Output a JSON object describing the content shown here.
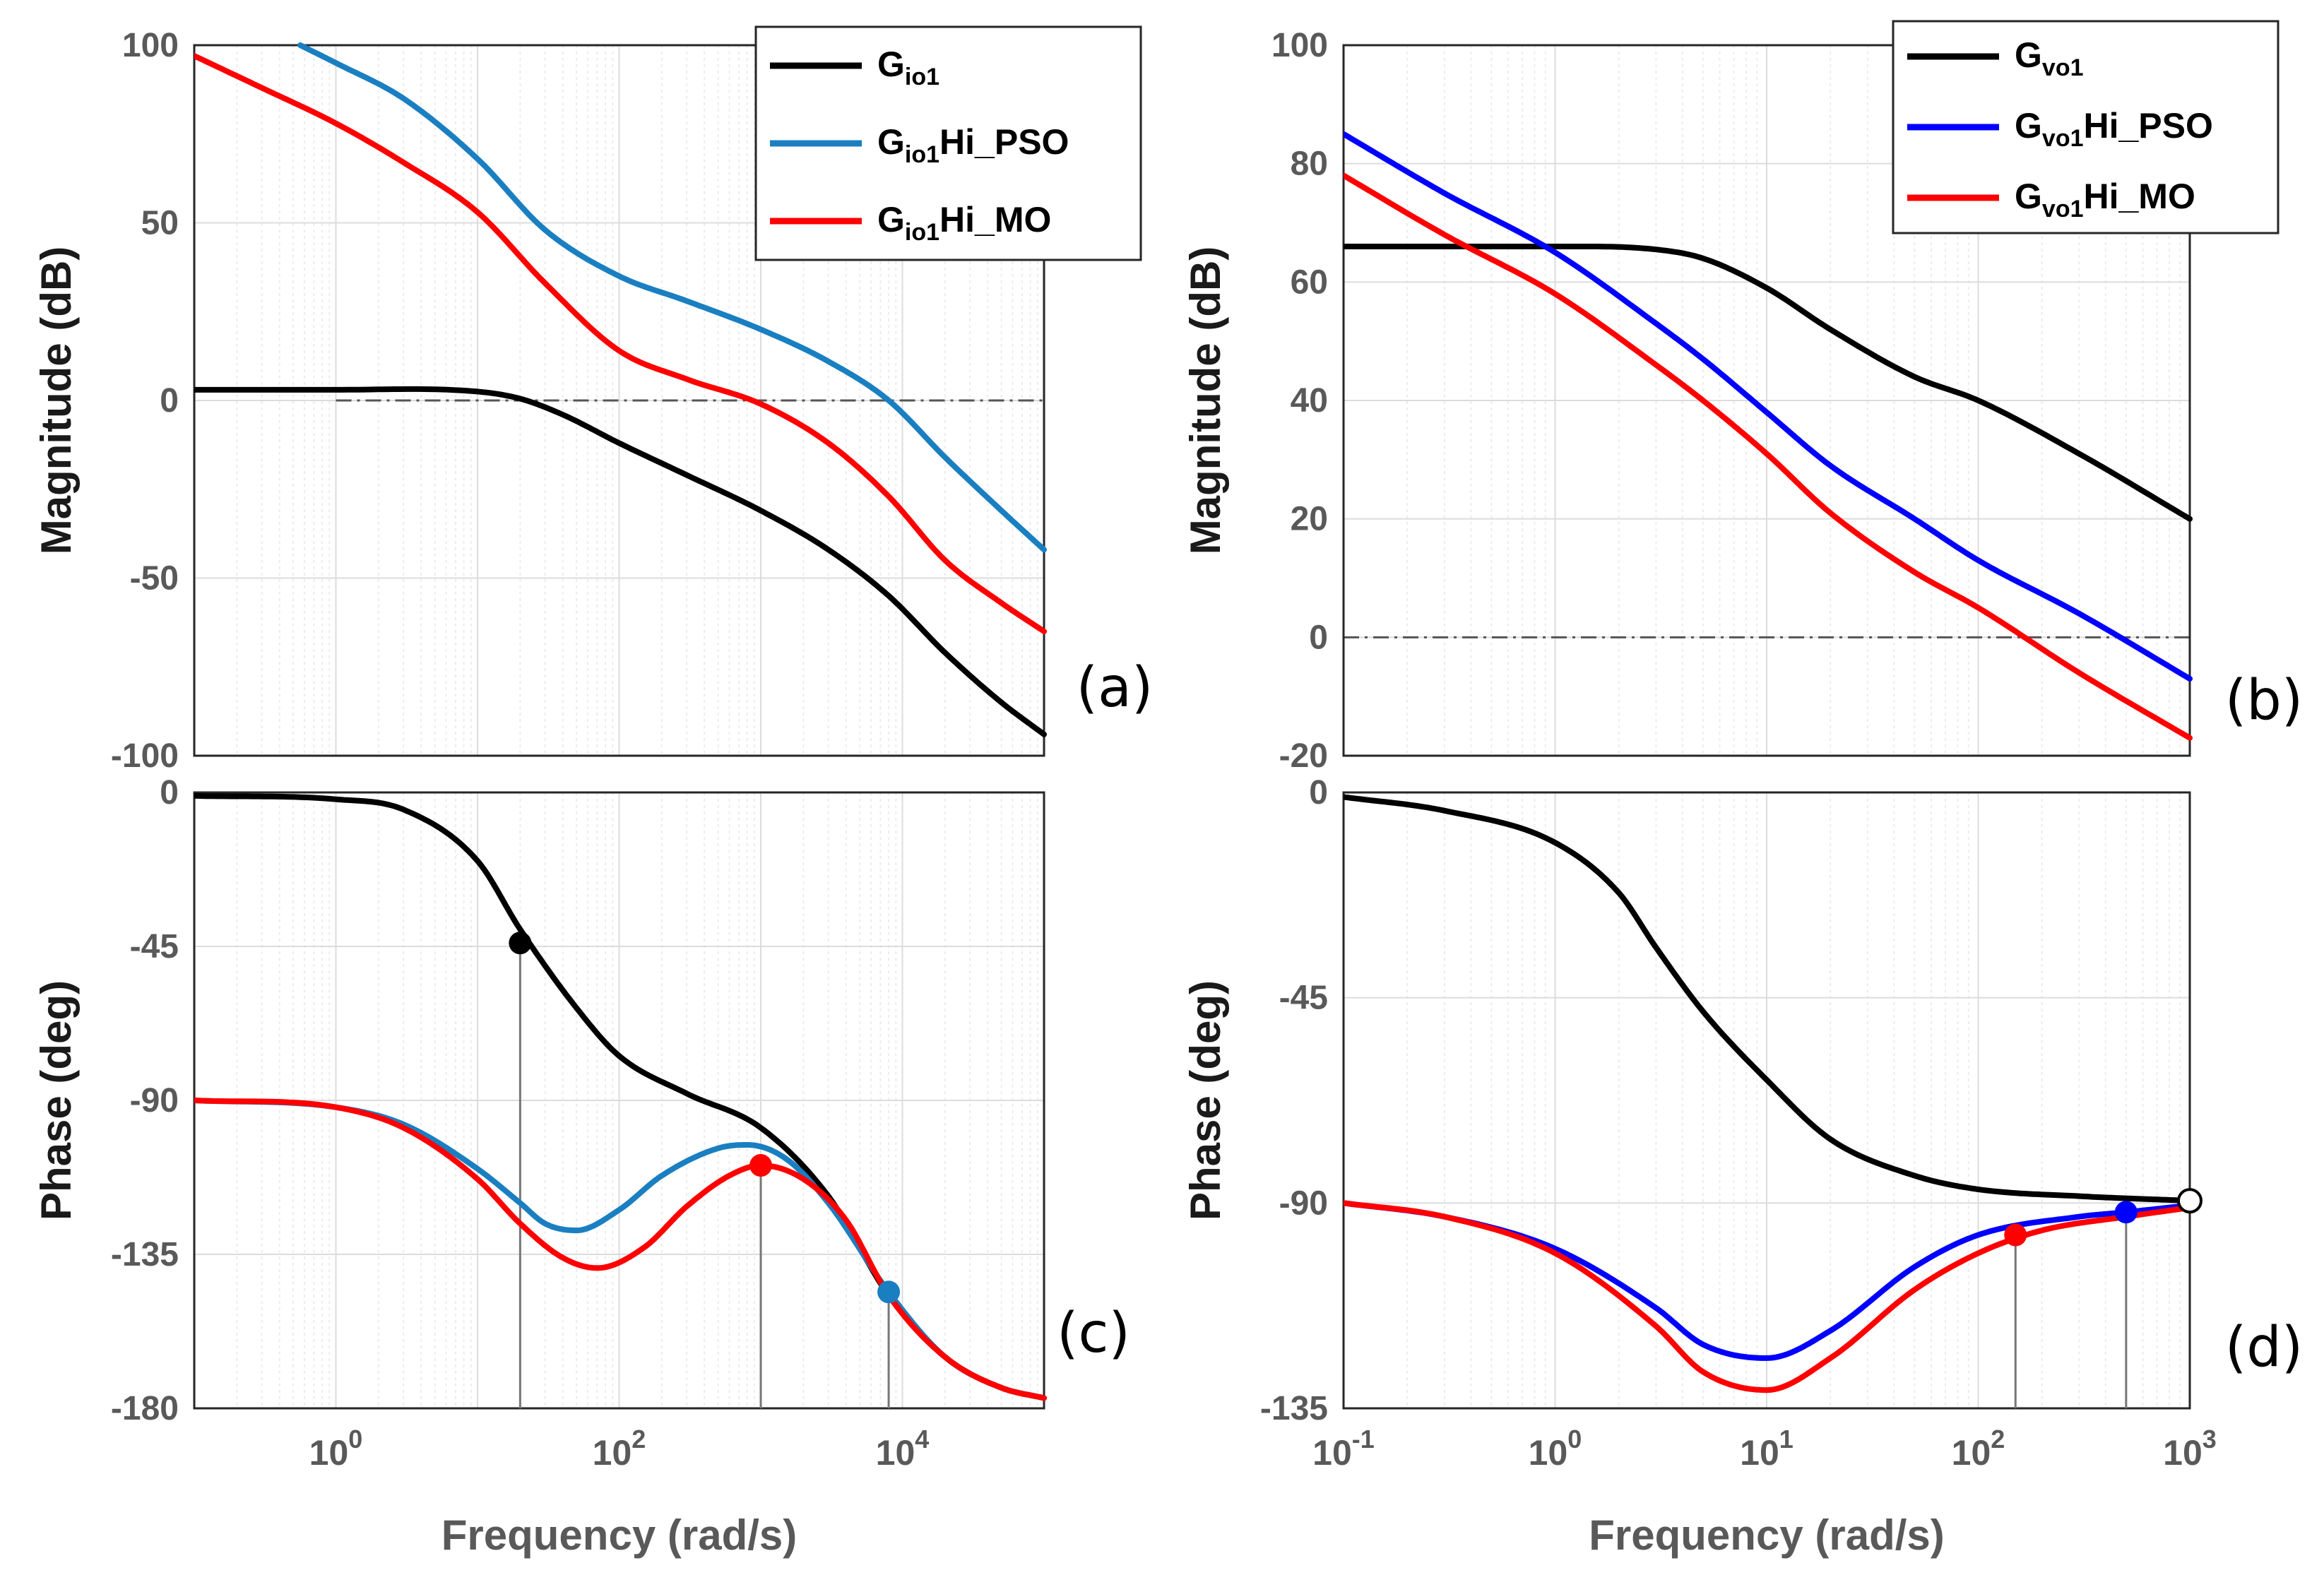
{
  "figure": {
    "panels": [
      {
        "key": "a",
        "label": "(a)",
        "ylabel": "Magnitude (dB)",
        "xlabel": "",
        "legend": [
          {
            "base": "G",
            "sub": "io1",
            "suffix": ""
          },
          {
            "base": "G",
            "sub": "io1",
            "suffix": "Hi_PSO"
          },
          {
            "base": "G",
            "sub": "io1",
            "suffix": "Hi_MO"
          }
        ]
      },
      {
        "key": "b",
        "label": "(b)",
        "ylabel": "Magnitude (dB)",
        "xlabel": "",
        "legend": [
          {
            "base": "G",
            "sub": "vo1",
            "suffix": ""
          },
          {
            "base": "G",
            "sub": "vo1",
            "suffix": "Hi_PSO"
          },
          {
            "base": "G",
            "sub": "vo1",
            "suffix": "Hi_MO"
          }
        ]
      },
      {
        "key": "c",
        "label": "(c)",
        "ylabel": "Phase (deg)",
        "xlabel": "Frequency (rad/s)",
        "legend": []
      },
      {
        "key": "d",
        "label": "(d)",
        "ylabel": "Phase (deg)",
        "xlabel": "Frequency (rad/s)",
        "legend": []
      }
    ]
  },
  "chart_data": [
    {
      "id": "a",
      "type": "line",
      "title": "",
      "xlabel": "",
      "ylabel": "Magnitude (dB)",
      "xscale": "log",
      "xlim": [
        0.1,
        100000
      ],
      "ylim": [
        -100,
        100
      ],
      "xticks": [],
      "xtick_labels": [],
      "yticks": [
        100,
        50,
        0,
        -50,
        -100
      ],
      "ytick_labels": [
        "100",
        "50",
        "0",
        "-50",
        "-100"
      ],
      "grid": true,
      "legend_position": "top-right",
      "reference_lines": [
        {
          "axis": "y",
          "value": 0,
          "from": 1
        }
      ],
      "series": [
        {
          "name": "Gio1",
          "color": "#000000",
          "x": [
            0.1,
            1,
            10,
            20,
            40,
            100,
            300,
            1000,
            3000,
            8000,
            20000,
            50000,
            100000
          ],
          "y": [
            3,
            3,
            2.5,
            0.5,
            -4,
            -12,
            -21,
            -31,
            -42,
            -55,
            -71,
            -85,
            -94
          ]
        },
        {
          "name": "Gio1Hi_PSO",
          "color": "#1a7fc1",
          "x": [
            0.56,
            1,
            3,
            10,
            30,
            100,
            300,
            1000,
            3000,
            8000,
            20000,
            50000,
            100000
          ],
          "y": [
            100,
            95,
            85,
            68,
            48,
            35,
            28,
            20,
            11,
            0,
            -16,
            -31,
            -42
          ]
        },
        {
          "name": "Gio1Hi_MO",
          "color": "#ff0000",
          "x": [
            0.1,
            0.3,
            1,
            3,
            10,
            30,
            100,
            300,
            1000,
            3000,
            8000,
            20000,
            50000,
            100000
          ],
          "y": [
            97,
            88,
            78,
            67,
            53,
            33,
            14,
            6,
            -1,
            -12,
            -27,
            -45,
            -57,
            -65
          ]
        }
      ],
      "markers": []
    },
    {
      "id": "b",
      "type": "line",
      "title": "",
      "xlabel": "",
      "ylabel": "Magnitude (dB)",
      "xscale": "log",
      "xlim": [
        0.1,
        1000
      ],
      "ylim": [
        -20,
        100
      ],
      "xticks": [],
      "xtick_labels": [],
      "yticks": [
        100,
        80,
        60,
        40,
        20,
        0,
        -20
      ],
      "ytick_labels": [
        "100",
        "80",
        "60",
        "40",
        "20",
        "0",
        "-20"
      ],
      "grid": true,
      "legend_position": "top-right",
      "reference_lines": [
        {
          "axis": "y",
          "value": 0,
          "from": 0.1
        }
      ],
      "series": [
        {
          "name": "Gvo1",
          "color": "#000000",
          "x": [
            0.1,
            1,
            3,
            5,
            10,
            20,
            50,
            100,
            300,
            1000
          ],
          "y": [
            66,
            66,
            65.5,
            64,
            59,
            52,
            44,
            40,
            31,
            20
          ]
        },
        {
          "name": "Gvo1Hi_PSO",
          "color": "#0000ff",
          "x": [
            0.1,
            0.3,
            1,
            3,
            5,
            10,
            20,
            50,
            100,
            300,
            1000
          ],
          "y": [
            85,
            75,
            65,
            53,
            47,
            38,
            29,
            20,
            13,
            4,
            -7
          ]
        },
        {
          "name": "Gvo1Hi_MO",
          "color": "#ff0000",
          "x": [
            0.1,
            0.3,
            1,
            3,
            5,
            10,
            20,
            50,
            100,
            300,
            1000
          ],
          "y": [
            78,
            68,
            58,
            46,
            40,
            31,
            21,
            11,
            5,
            -6,
            -17
          ]
        }
      ],
      "markers": []
    },
    {
      "id": "c",
      "type": "line",
      "title": "",
      "xlabel": "Frequency (rad/s)",
      "ylabel": "Phase (deg)",
      "xscale": "log",
      "xlim": [
        0.1,
        100000
      ],
      "ylim": [
        -180,
        0
      ],
      "xticks": [
        1,
        100,
        10000
      ],
      "xtick_labels": [
        {
          "base": "10",
          "exp": "0"
        },
        {
          "base": "10",
          "exp": "2"
        },
        {
          "base": "10",
          "exp": "4"
        }
      ],
      "yticks": [
        0,
        -45,
        -90,
        -135,
        -180
      ],
      "ytick_labels": [
        "0",
        "-45",
        "-90",
        "-135",
        "-180"
      ],
      "grid": true,
      "legend_position": "none",
      "reference_lines": [
        {
          "axis": "y",
          "value": -180,
          "from": 1
        }
      ],
      "series": [
        {
          "name": "Gio1",
          "color": "#000000",
          "x": [
            0.1,
            1,
            3,
            10,
            20,
            50,
            100,
            300,
            1000,
            3000,
            8000,
            20000,
            50000,
            100000
          ],
          "y": [
            -1,
            -2,
            -5,
            -20,
            -40,
            -63,
            -77,
            -88,
            -98,
            -118,
            -147,
            -165,
            -174,
            -177
          ]
        },
        {
          "name": "Gio1Hi_PSO",
          "color": "#1a7fc1",
          "x": [
            0.1,
            1,
            3,
            10,
            20,
            30,
            50,
            100,
            200,
            500,
            800,
            1500,
            3000,
            8000,
            20000,
            50000,
            100000
          ],
          "y": [
            -90,
            -92,
            -97,
            -110,
            -120,
            -126,
            -128,
            -122,
            -112,
            -104,
            -103,
            -107,
            -120,
            -146,
            -165,
            -174,
            -177
          ]
        },
        {
          "name": "Gio1Hi_MO",
          "color": "#ff0000",
          "x": [
            0.1,
            1,
            3,
            10,
            20,
            40,
            70,
            150,
            300,
            600,
            1000,
            2000,
            4000,
            8000,
            20000,
            50000,
            100000
          ],
          "y": [
            -90,
            -92,
            -98,
            -113,
            -126,
            -136,
            -139,
            -133,
            -121,
            -112,
            -109,
            -113,
            -125,
            -147,
            -165,
            -174,
            -177
          ]
        }
      ],
      "markers": [
        {
          "x": 20,
          "y": -44,
          "color": "#000000",
          "filled": true
        },
        {
          "x": 1000,
          "y": -109,
          "color": "#ff0000",
          "filled": true
        },
        {
          "x": 8000,
          "y": -146,
          "color": "#1a7fc1",
          "filled": true
        }
      ]
    },
    {
      "id": "d",
      "type": "line",
      "title": "",
      "xlabel": "Frequency (rad/s)",
      "ylabel": "Phase (deg)",
      "xscale": "log",
      "xlim": [
        0.1,
        1000
      ],
      "ylim": [
        -135,
        0
      ],
      "xticks": [
        0.1,
        1,
        10,
        100,
        1000
      ],
      "xtick_labels": [
        {
          "base": "10",
          "exp": "-1"
        },
        {
          "base": "10",
          "exp": "0"
        },
        {
          "base": "10",
          "exp": "1"
        },
        {
          "base": "10",
          "exp": "2"
        },
        {
          "base": "10",
          "exp": "3"
        }
      ],
      "yticks": [
        0,
        -45,
        -90,
        -135
      ],
      "ytick_labels": [
        "0",
        "-45",
        "-90",
        "-135"
      ],
      "grid": true,
      "legend_position": "top-right",
      "reference_lines": [],
      "series": [
        {
          "name": "Gvo1",
          "color": "#000000",
          "x": [
            0.1,
            0.3,
            1,
            2,
            3,
            5,
            10,
            20,
            50,
            100,
            300,
            1000
          ],
          "y": [
            -1,
            -4,
            -11,
            -22,
            -34,
            -48,
            -63,
            -76,
            -84,
            -87,
            -88.5,
            -89.5
          ]
        },
        {
          "name": "Gvo1Hi_PSO",
          "color": "#0000ff",
          "x": [
            0.1,
            0.3,
            1,
            3,
            5,
            10,
            20,
            50,
            100,
            300,
            500,
            1000
          ],
          "y": [
            -90,
            -93,
            -100,
            -113,
            -121,
            -124,
            -118,
            -104,
            -97,
            -93,
            -92,
            -90.5
          ]
        },
        {
          "name": "Gvo1Hi_MO",
          "color": "#ff0000",
          "x": [
            0.1,
            0.3,
            1,
            3,
            5,
            10,
            20,
            50,
            100,
            200,
            500,
            1000
          ],
          "y": [
            -90,
            -93,
            -101,
            -117,
            -127,
            -131,
            -124,
            -109,
            -101,
            -96,
            -93,
            -91
          ]
        }
      ],
      "markers": [
        {
          "x": 150,
          "y": -97,
          "color": "#ff0000",
          "filled": true
        },
        {
          "x": 500,
          "y": -92,
          "color": "#0000ff",
          "filled": true
        },
        {
          "x": 1000,
          "y": -89.5,
          "color": "#000000",
          "filled": false
        }
      ]
    }
  ]
}
